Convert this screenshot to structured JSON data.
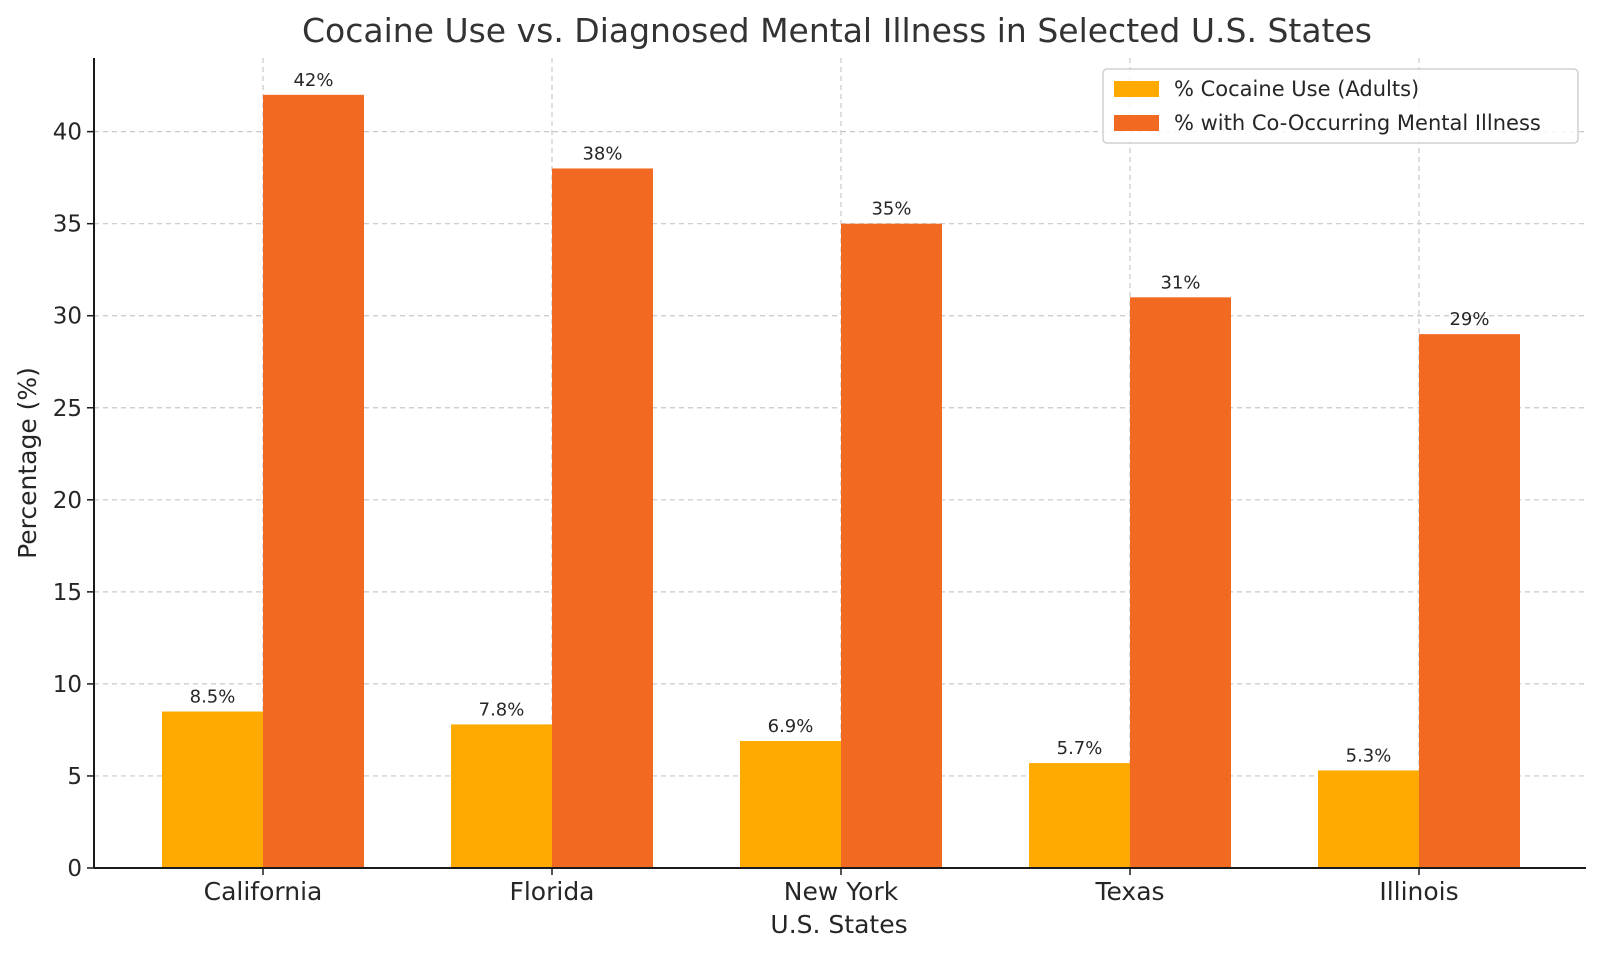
{
  "chart_data": {
    "type": "bar",
    "title": "Cocaine Use vs. Diagnosed Mental Illness in Selected U.S. States",
    "xlabel": "U.S. States",
    "ylabel": "Percentage (%)",
    "categories": [
      "California",
      "Florida",
      "New York",
      "Texas",
      "Illinois"
    ],
    "series": [
      {
        "name": "% Cocaine Use (Adults)",
        "values": [
          8.5,
          7.8,
          6.9,
          5.7,
          5.3
        ],
        "labels": [
          "8.5%",
          "7.8%",
          "6.9%",
          "5.7%",
          "5.3%"
        ],
        "color": "#FFAA00"
      },
      {
        "name": "% with Co-Occurring Mental Illness",
        "values": [
          42,
          38,
          35,
          31,
          29
        ],
        "labels": [
          "42%",
          "38%",
          "35%",
          "31%",
          "29%"
        ],
        "color": "#F26A21"
      }
    ],
    "ylim": [
      0,
      44
    ],
    "yticks": [
      0,
      5,
      10,
      15,
      20,
      25,
      30,
      35,
      40
    ],
    "grid": true,
    "legend": "top-right"
  }
}
